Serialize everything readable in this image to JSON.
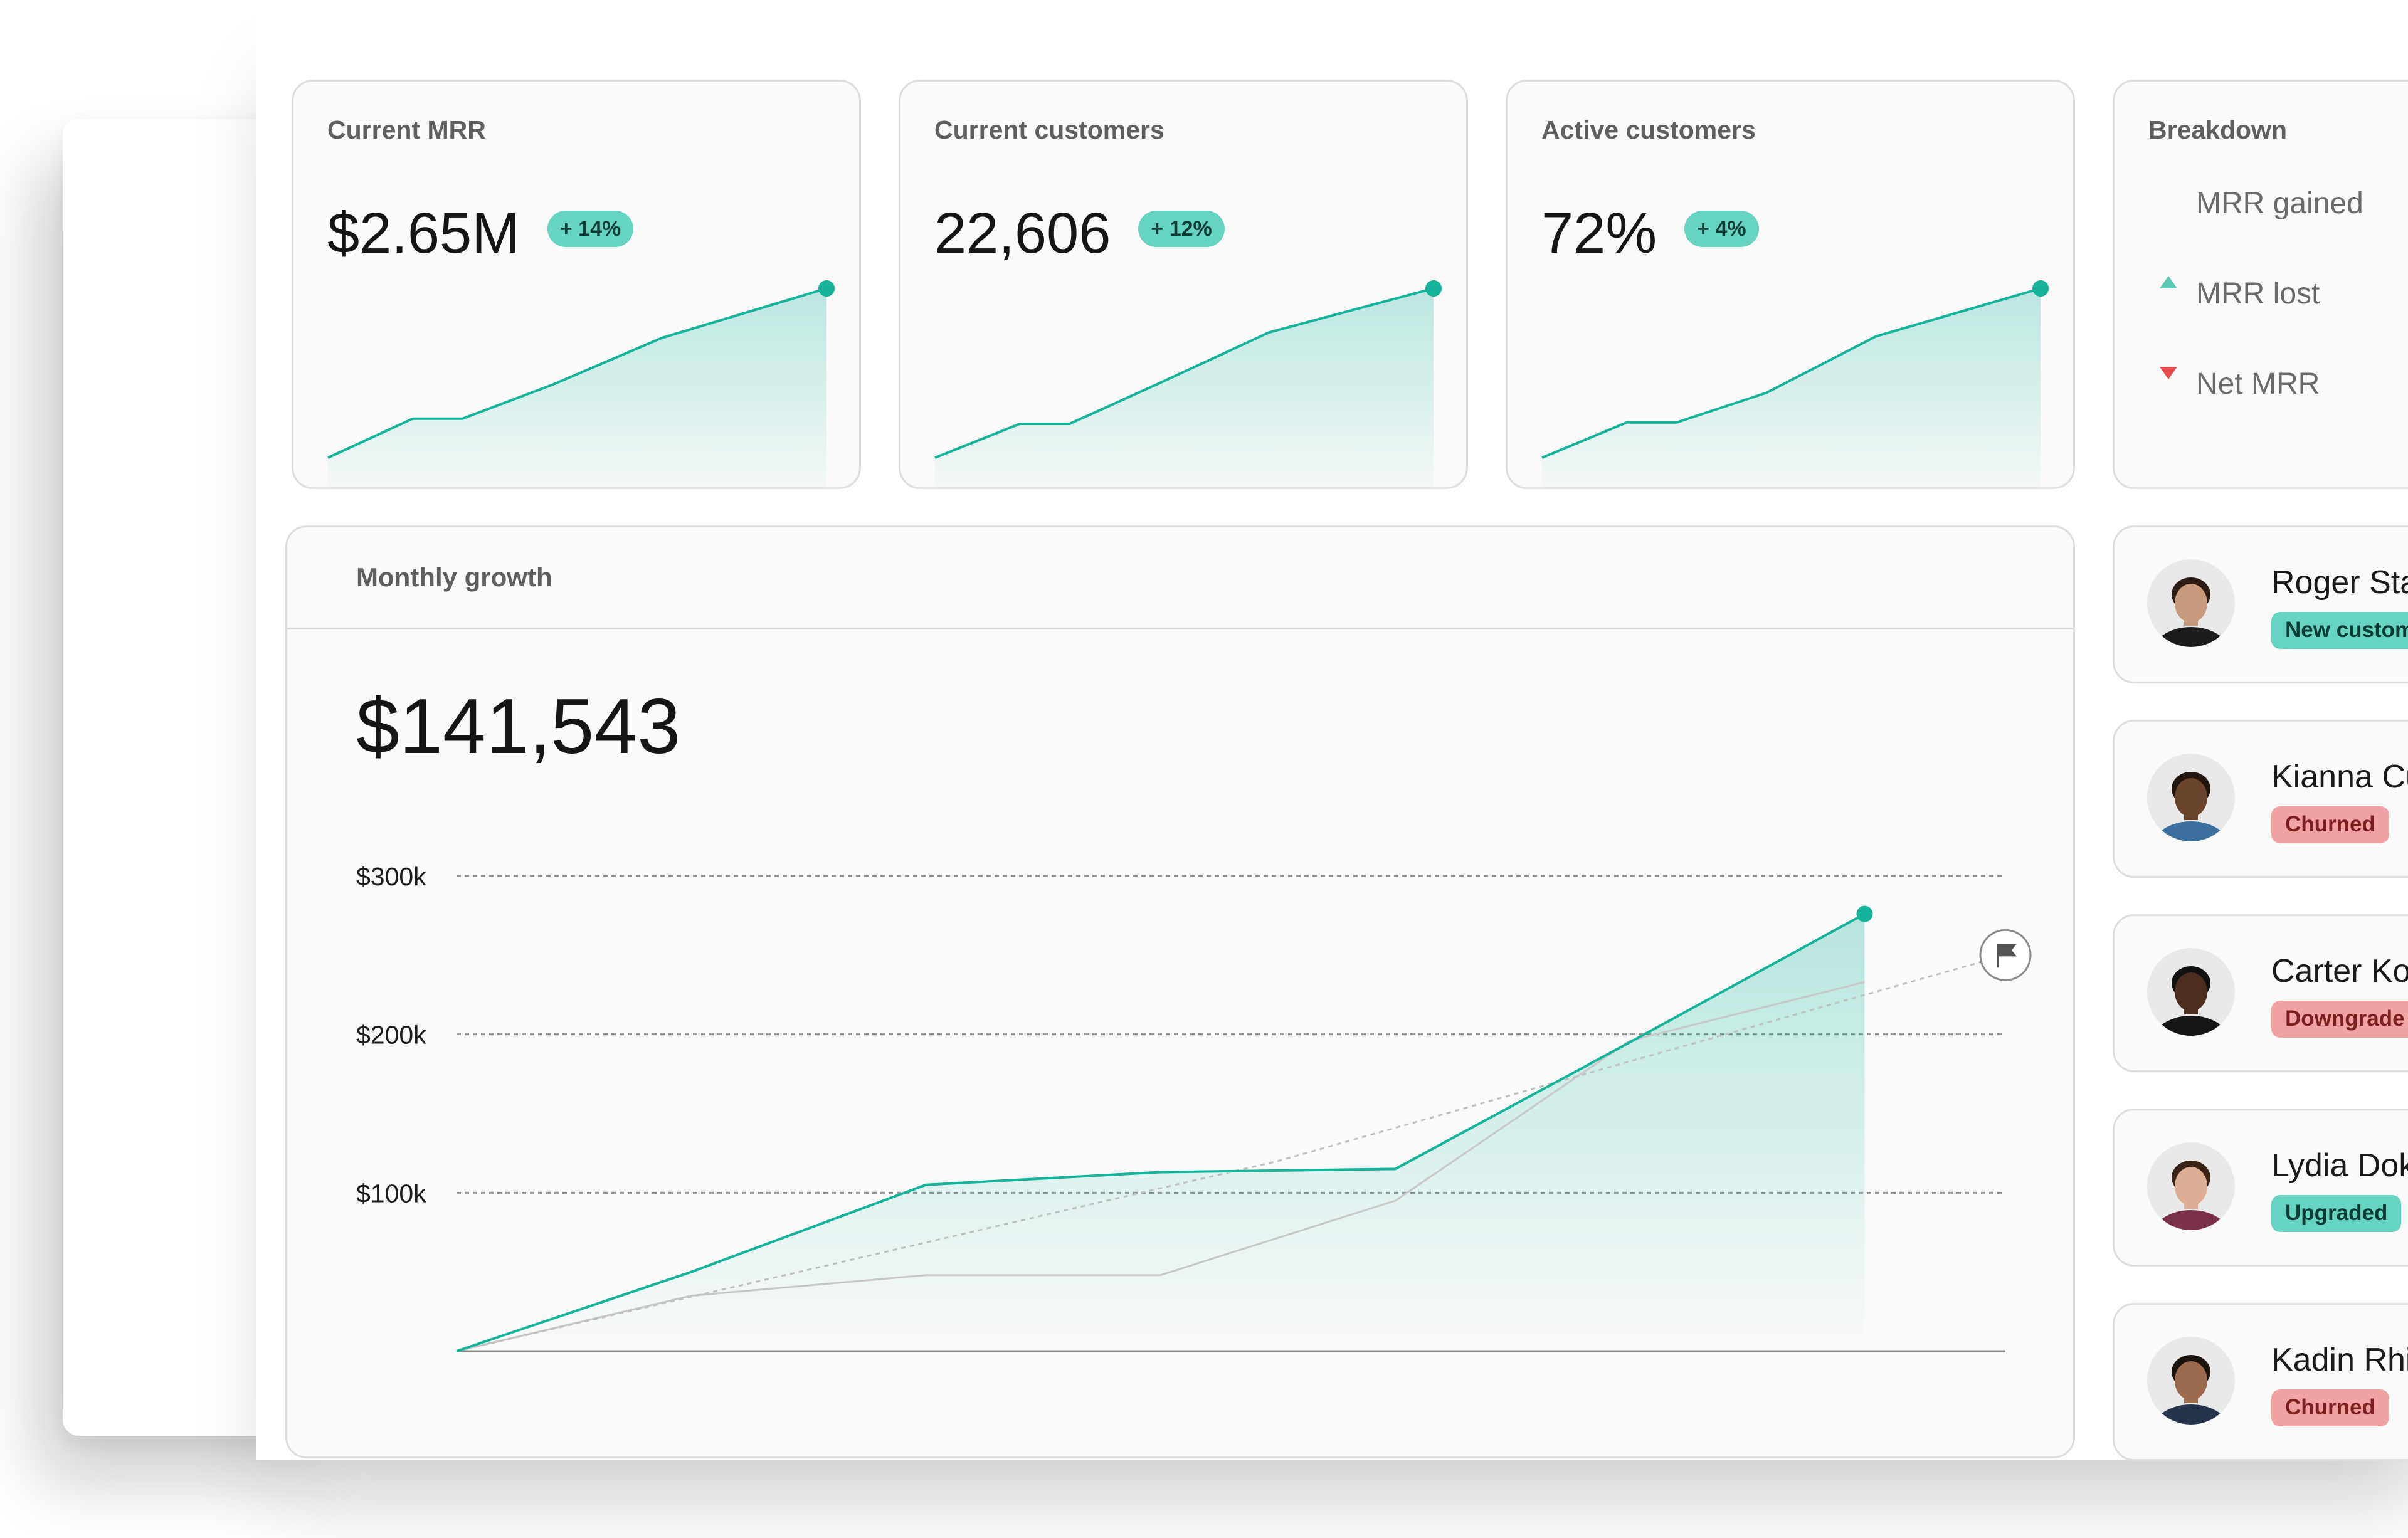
{
  "kpis": [
    {
      "label": "Current MRR",
      "value": "$2.65M",
      "change": "+ 14%",
      "trend": [
        2.0,
        2.15,
        2.15,
        2.28,
        2.46,
        2.65
      ]
    },
    {
      "label": "Current customers",
      "value": "22,606",
      "change": "+ 12%",
      "trend": [
        17.6,
        18.6,
        18.6,
        19.8,
        21.3,
        22.6
      ]
    },
    {
      "label": "Active customers",
      "value": "72%",
      "change": "+ 4%",
      "trend": [
        60,
        62.5,
        62.5,
        64.6,
        68.6,
        72
      ]
    }
  ],
  "breakdown": {
    "title": "Breakdown",
    "items": [
      {
        "label": "MRR gained",
        "direction": "up"
      },
      {
        "label": "MRR lost",
        "direction": "down"
      },
      {
        "label": "Net MRR",
        "direction": "none"
      }
    ]
  },
  "monthly_growth": {
    "title": "Monthly growth",
    "value": "$141,543"
  },
  "chart_data": {
    "type": "line",
    "x": [
      0,
      1,
      2,
      3,
      4,
      5,
      6
    ],
    "ticks": [
      {
        "value": 300000,
        "label": "$300k"
      },
      {
        "value": 200000,
        "label": "$200k"
      },
      {
        "value": 100000,
        "label": "$100k"
      }
    ],
    "ylim": [
      0,
      300000
    ],
    "grid": true,
    "series": [
      {
        "values": [
          0,
          50000,
          105000,
          113000,
          115000,
          195000,
          276000
        ],
        "color": "#16b39b",
        "style": "area-solid"
      },
      {
        "values": [
          0,
          35000,
          48000,
          48000,
          95000,
          196000,
          233000
        ],
        "color": "#c8c8c8",
        "style": "solid"
      },
      {
        "values": [
          0,
          120000,
          250000
        ],
        "x": [
          0,
          3.5,
          6.6
        ],
        "color": "#c0c0c0",
        "style": "dashed"
      }
    ],
    "goal_icon": "flag-icon"
  },
  "customers": [
    {
      "name": "Roger Sta",
      "status": "New custom",
      "tone": "teal",
      "skin": "#c99b7e",
      "hair": "#2b1d15",
      "shirt": "#1d1d1d"
    },
    {
      "name": "Kianna Cu",
      "status": "Churned",
      "tone": "red",
      "skin": "#6b4430",
      "hair": "#231610",
      "shirt": "#3b6f9d"
    },
    {
      "name": "Carter Ko",
      "status": "Downgrade",
      "tone": "red",
      "skin": "#4b2e20",
      "hair": "#111111",
      "shirt": "#151515"
    },
    {
      "name": "Lydia Dok",
      "status": "Upgraded",
      "tone": "teal",
      "skin": "#dcae93",
      "hair": "#3a2418",
      "shirt": "#7a2f4a"
    },
    {
      "name": "Kadin Rhi",
      "status": "Churned",
      "tone": "red",
      "skin": "#9c6a4c",
      "hair": "#1a120d",
      "shirt": "#25344a"
    }
  ],
  "colors": {
    "accent": "#16b39b",
    "accent_light": "#67d3c1",
    "danger": "#e44a4a"
  }
}
